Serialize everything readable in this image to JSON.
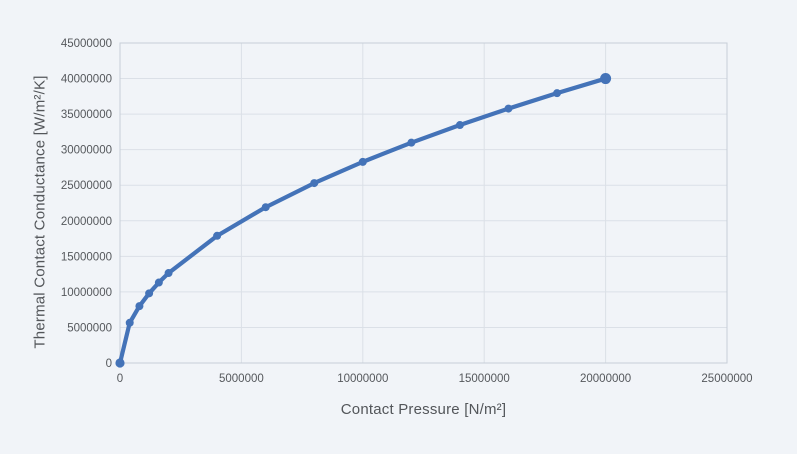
{
  "colors": {
    "background": "#F1F4F8",
    "plot_border": "#C7CED7",
    "gridline": "#DBE0E7",
    "tick_label": "#55585C",
    "axis_title": "#53565A",
    "series": "#4473B8"
  },
  "chart_data": {
    "type": "line",
    "title": "",
    "xlabel": "Contact Pressure [N/m²]",
    "ylabel": "Thermal Contact Conductance [W/m²/K]",
    "series": [
      {
        "name": "Thermal Contact Conductance",
        "x": [
          0,
          400000,
          800000,
          1200000,
          1600000,
          2000000,
          4000000,
          6000000,
          8000000,
          10000000,
          12000000,
          14000000,
          16000000,
          18000000,
          20000000
        ],
        "y": [
          0,
          5657000,
          8000000,
          9798000,
          11314000,
          12649000,
          17889000,
          21909000,
          25298000,
          28284000,
          30984000,
          33466000,
          35777000,
          37947000,
          40000000
        ],
        "color": "#4473B8",
        "marker": "circle"
      }
    ],
    "xlim": [
      0,
      25000000
    ],
    "ylim": [
      0,
      45000000
    ],
    "x_ticks": [
      0,
      5000000,
      10000000,
      15000000,
      20000000,
      25000000
    ],
    "y_ticks": [
      0,
      5000000,
      10000000,
      15000000,
      20000000,
      25000000,
      30000000,
      35000000,
      40000000,
      45000000
    ],
    "grid": true,
    "legend": false
  }
}
